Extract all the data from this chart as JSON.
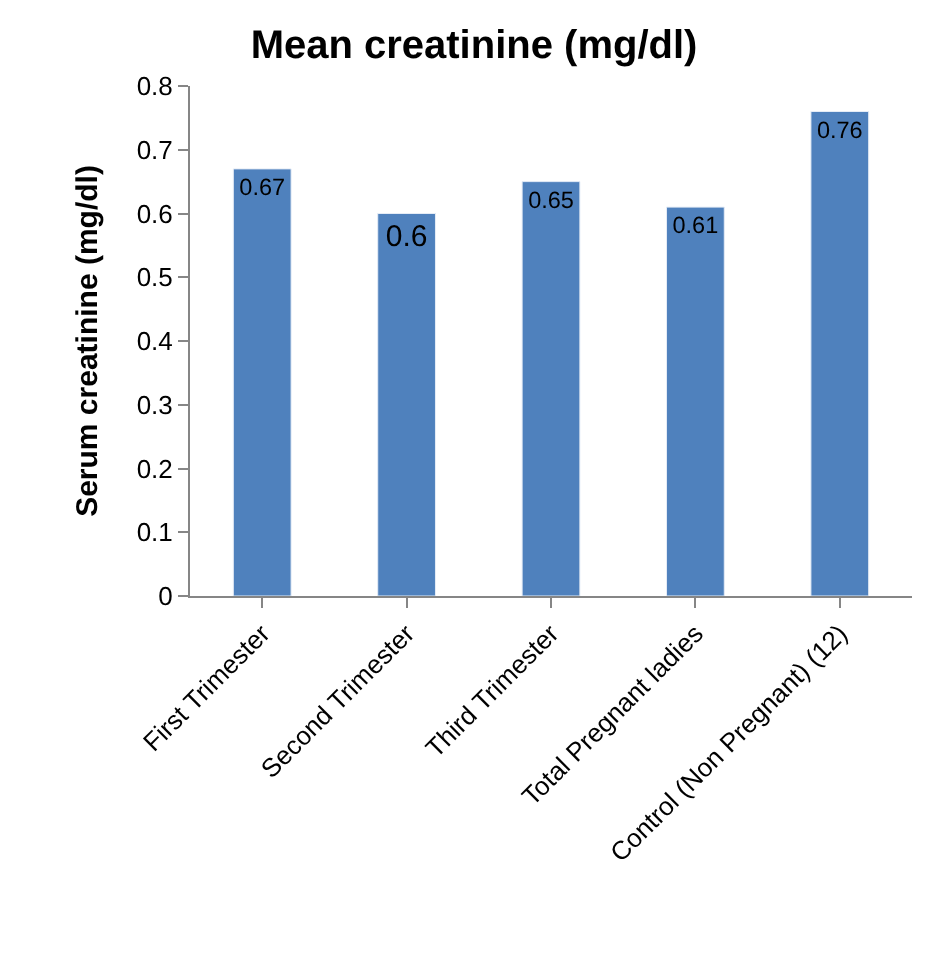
{
  "chart_data": {
    "type": "bar",
    "title": "Mean creatinine (mg/dl)",
    "ylabel": "Serum creatinine (mg/dl)",
    "categories": [
      "First Trimester",
      "Second Trimester",
      "Third Trimester",
      "Total Pregnant ladies",
      "Control (Non Pregnant) (12)"
    ],
    "values": [
      0.67,
      0.6,
      0.65,
      0.61,
      0.76
    ],
    "color": "#4f81bd",
    "ylim": [
      0,
      0.8
    ],
    "yticks": [
      0,
      0.1,
      0.2,
      0.3,
      0.4,
      0.5,
      0.6,
      0.7,
      0.8
    ],
    "legend": false,
    "data_labels": true
  }
}
